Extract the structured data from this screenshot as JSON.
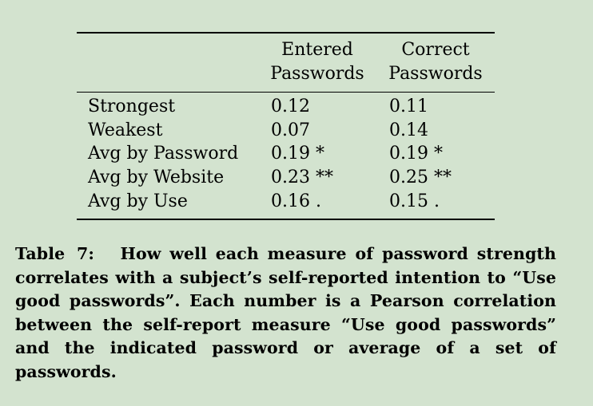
{
  "table": {
    "columns": [
      {
        "line1": "Entered",
        "line2": "Passwords"
      },
      {
        "line1": "Correct",
        "line2": "Passwords"
      }
    ],
    "rows": [
      {
        "label": "Strongest",
        "entered": "0.12",
        "correct": "0.11"
      },
      {
        "label": "Weakest",
        "entered": "0.07",
        "correct": "0.14"
      },
      {
        "label": "Avg by Password",
        "entered": "0.19 *",
        "correct": "0.19 *"
      },
      {
        "label": "Avg by Website",
        "entered": "0.23 **",
        "correct": "0.25 **"
      },
      {
        "label": "Avg by Use",
        "entered": "0.16 .",
        "correct": "0.15 ."
      }
    ]
  },
  "caption": {
    "label": "Table 7:",
    "text": "How well each measure of password strength correlates with a subject’s self-reported intention to “Use good passwords”. Each number is a Pearson correlation between the self-report measure “Use good passwords” and the indicated password or average of a set of passwords."
  }
}
